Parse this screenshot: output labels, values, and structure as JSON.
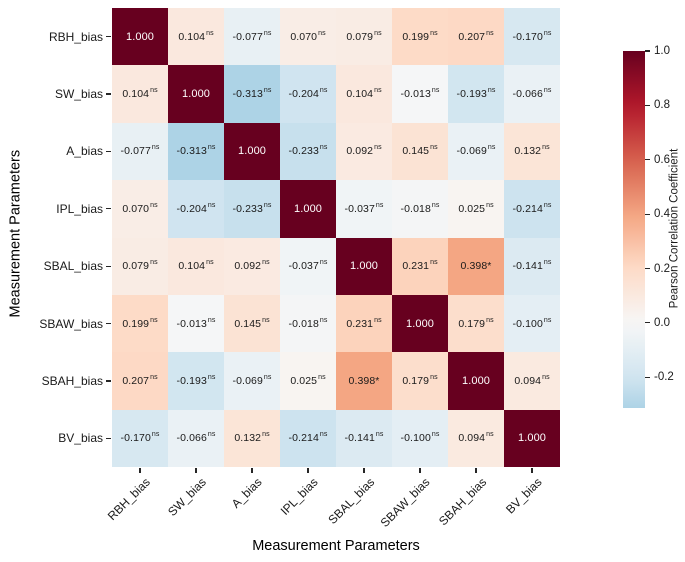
{
  "figure": {
    "x_axis_title": "Measurement Parameters",
    "y_axis_title": "Measurement Parameters",
    "colorbar_label": "Pearson Correlation Coefficient"
  },
  "chart_data": {
    "type": "heatmap",
    "title": "",
    "xlabel": "Measurement Parameters",
    "ylabel": "Measurement Parameters",
    "categories": [
      "RBH_bias",
      "SW_bias",
      "A_bias",
      "IPL_bias",
      "SBAL_bias",
      "SBAW_bias",
      "SBAH_bias",
      "BV_bias"
    ],
    "values": [
      [
        1.0,
        0.104,
        -0.077,
        0.07,
        0.079,
        0.199,
        0.207,
        -0.17
      ],
      [
        0.104,
        1.0,
        -0.313,
        -0.204,
        0.104,
        -0.013,
        -0.193,
        -0.066
      ],
      [
        -0.077,
        -0.313,
        1.0,
        -0.233,
        0.092,
        0.145,
        -0.069,
        0.132
      ],
      [
        0.07,
        -0.204,
        -0.233,
        1.0,
        -0.037,
        -0.018,
        0.025,
        -0.214
      ],
      [
        0.079,
        0.104,
        0.092,
        -0.037,
        1.0,
        0.231,
        0.398,
        -0.141
      ],
      [
        0.199,
        -0.013,
        0.145,
        -0.018,
        0.231,
        1.0,
        0.179,
        -0.1
      ],
      [
        0.207,
        -0.193,
        -0.069,
        0.025,
        0.398,
        0.179,
        1.0,
        0.094
      ],
      [
        -0.17,
        -0.066,
        0.132,
        -0.214,
        -0.141,
        -0.1,
        0.094,
        1.0
      ]
    ],
    "annotations": [
      [
        "",
        "ns",
        "ns",
        "ns",
        "ns",
        "ns",
        "ns",
        "ns"
      ],
      [
        "ns",
        "",
        "ns",
        "ns",
        "ns",
        "ns",
        "ns",
        "ns"
      ],
      [
        "ns",
        "ns",
        "",
        "ns",
        "ns",
        "ns",
        "ns",
        "ns"
      ],
      [
        "ns",
        "ns",
        "ns",
        "",
        "ns",
        "ns",
        "ns",
        "ns"
      ],
      [
        "ns",
        "ns",
        "ns",
        "ns",
        "",
        "ns",
        "*",
        "ns"
      ],
      [
        "ns",
        "ns",
        "ns",
        "ns",
        "ns",
        "",
        "ns",
        "ns"
      ],
      [
        "ns",
        "ns",
        "ns",
        "ns",
        "*",
        "ns",
        "",
        "ns"
      ],
      [
        "ns",
        "ns",
        "ns",
        "ns",
        "ns",
        "ns",
        "ns",
        ""
      ]
    ],
    "value_decimals": 3,
    "grid": false,
    "legend_position": "right-colorbar",
    "colorbar": {
      "label": "Pearson Correlation Coefficient",
      "ticks": [
        1.0,
        0.8,
        0.6,
        0.4,
        0.2,
        0.0,
        -0.2
      ],
      "vmin": -0.313,
      "vmax": 1.0
    },
    "colormap": {
      "name": "RdBu_r",
      "domain": [
        -1,
        1
      ],
      "stops": [
        "#053061",
        "#2166ac",
        "#4393c3",
        "#92c5de",
        "#d1e5f0",
        "#f7f7f7",
        "#fddbc7",
        "#f4a582",
        "#d6604d",
        "#b2182b",
        "#67001f"
      ]
    },
    "cell_text_color": "#1a1a1a",
    "diagonal_text_color": "#ffffff"
  }
}
